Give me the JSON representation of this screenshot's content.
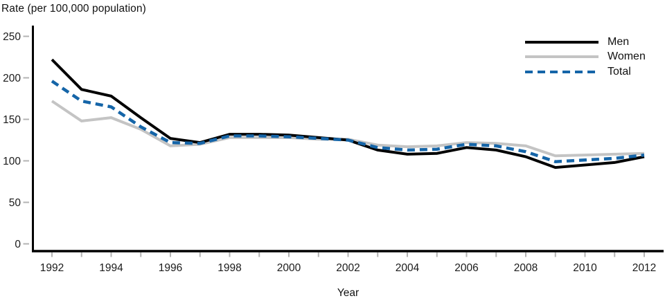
{
  "chart_data": {
    "type": "line",
    "title": "",
    "ylabel": "Rate (per 100,000 population)",
    "xlabel": "Year",
    "x": [
      1992,
      1993,
      1994,
      1995,
      1996,
      1997,
      1998,
      1999,
      2000,
      2001,
      2002,
      2003,
      2004,
      2005,
      2006,
      2007,
      2008,
      2009,
      2010,
      2011,
      2012
    ],
    "series": [
      {
        "name": "Men",
        "color": "#000000",
        "style": "solid",
        "values": [
          222,
          186,
          178,
          152,
          127,
          122,
          132,
          132,
          131,
          128,
          125,
          113,
          108,
          109,
          116,
          113,
          105,
          92,
          95,
          98,
          105
        ]
      },
      {
        "name": "Women",
        "color": "#c4c4c4",
        "style": "solid",
        "values": [
          172,
          148,
          152,
          138,
          118,
          120,
          128,
          128,
          128,
          126,
          126,
          119,
          117,
          118,
          122,
          121,
          118,
          106,
          107,
          108,
          109
        ]
      },
      {
        "name": "Total",
        "color": "#1565a8",
        "style": "dashed",
        "values": [
          196,
          172,
          165,
          141,
          122,
          121,
          130,
          130,
          129,
          127,
          125,
          116,
          113,
          114,
          120,
          118,
          111,
          99,
          101,
          103,
          107
        ]
      }
    ],
    "ylim": [
      0,
      250
    ],
    "yticks": [
      0,
      50,
      100,
      150,
      200,
      250
    ],
    "xtick_labels": [
      "1992",
      "1994",
      "1996",
      "1998",
      "2000",
      "2002",
      "2004",
      "2006",
      "2008",
      "2010",
      "2012"
    ],
    "legend_position": "top-right",
    "grid": false
  },
  "colors": {
    "axis": "#000000",
    "tick": "#b3b3b3",
    "text": "#1a1a1a"
  }
}
